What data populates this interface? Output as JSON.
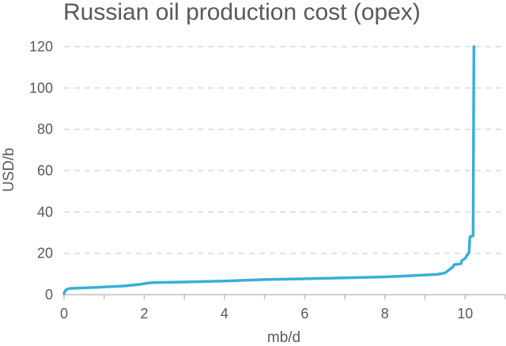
{
  "chart_data": {
    "type": "line",
    "title": "Russian oil production cost (opex)",
    "xlabel": "mb/d",
    "ylabel": "USD/b",
    "xlim": [
      0,
      11
    ],
    "ylim": [
      0,
      120
    ],
    "x_ticks": [
      0,
      2,
      4,
      6,
      8,
      10
    ],
    "y_ticks": [
      0,
      20,
      40,
      60,
      80,
      100,
      120
    ],
    "grid": "horizontal dashed",
    "legend": "none",
    "series_color": "#3aaed8",
    "series": [
      {
        "x": [
          0,
          0.02,
          0.06,
          0.15,
          0.4,
          1.0,
          1.5,
          1.9,
          2.05,
          2.2,
          3.0,
          4.0,
          5.0,
          6.0,
          7.0,
          8.0,
          8.5,
          9.0,
          9.3,
          9.5,
          9.6,
          9.7,
          9.72,
          9.9,
          9.92,
          10.0,
          10.05,
          10.1,
          10.12,
          10.2,
          10.22
        ],
        "y": [
          0.5,
          1.5,
          2.5,
          3.0,
          3.2,
          3.7,
          4.2,
          5.0,
          5.5,
          5.8,
          6.1,
          6.6,
          7.3,
          7.7,
          8.1,
          8.6,
          9.0,
          9.5,
          9.8,
          10.5,
          12.0,
          13.5,
          14.5,
          15.0,
          16.5,
          17.5,
          19.0,
          20.5,
          28.0,
          28.5,
          120
        ]
      }
    ]
  }
}
